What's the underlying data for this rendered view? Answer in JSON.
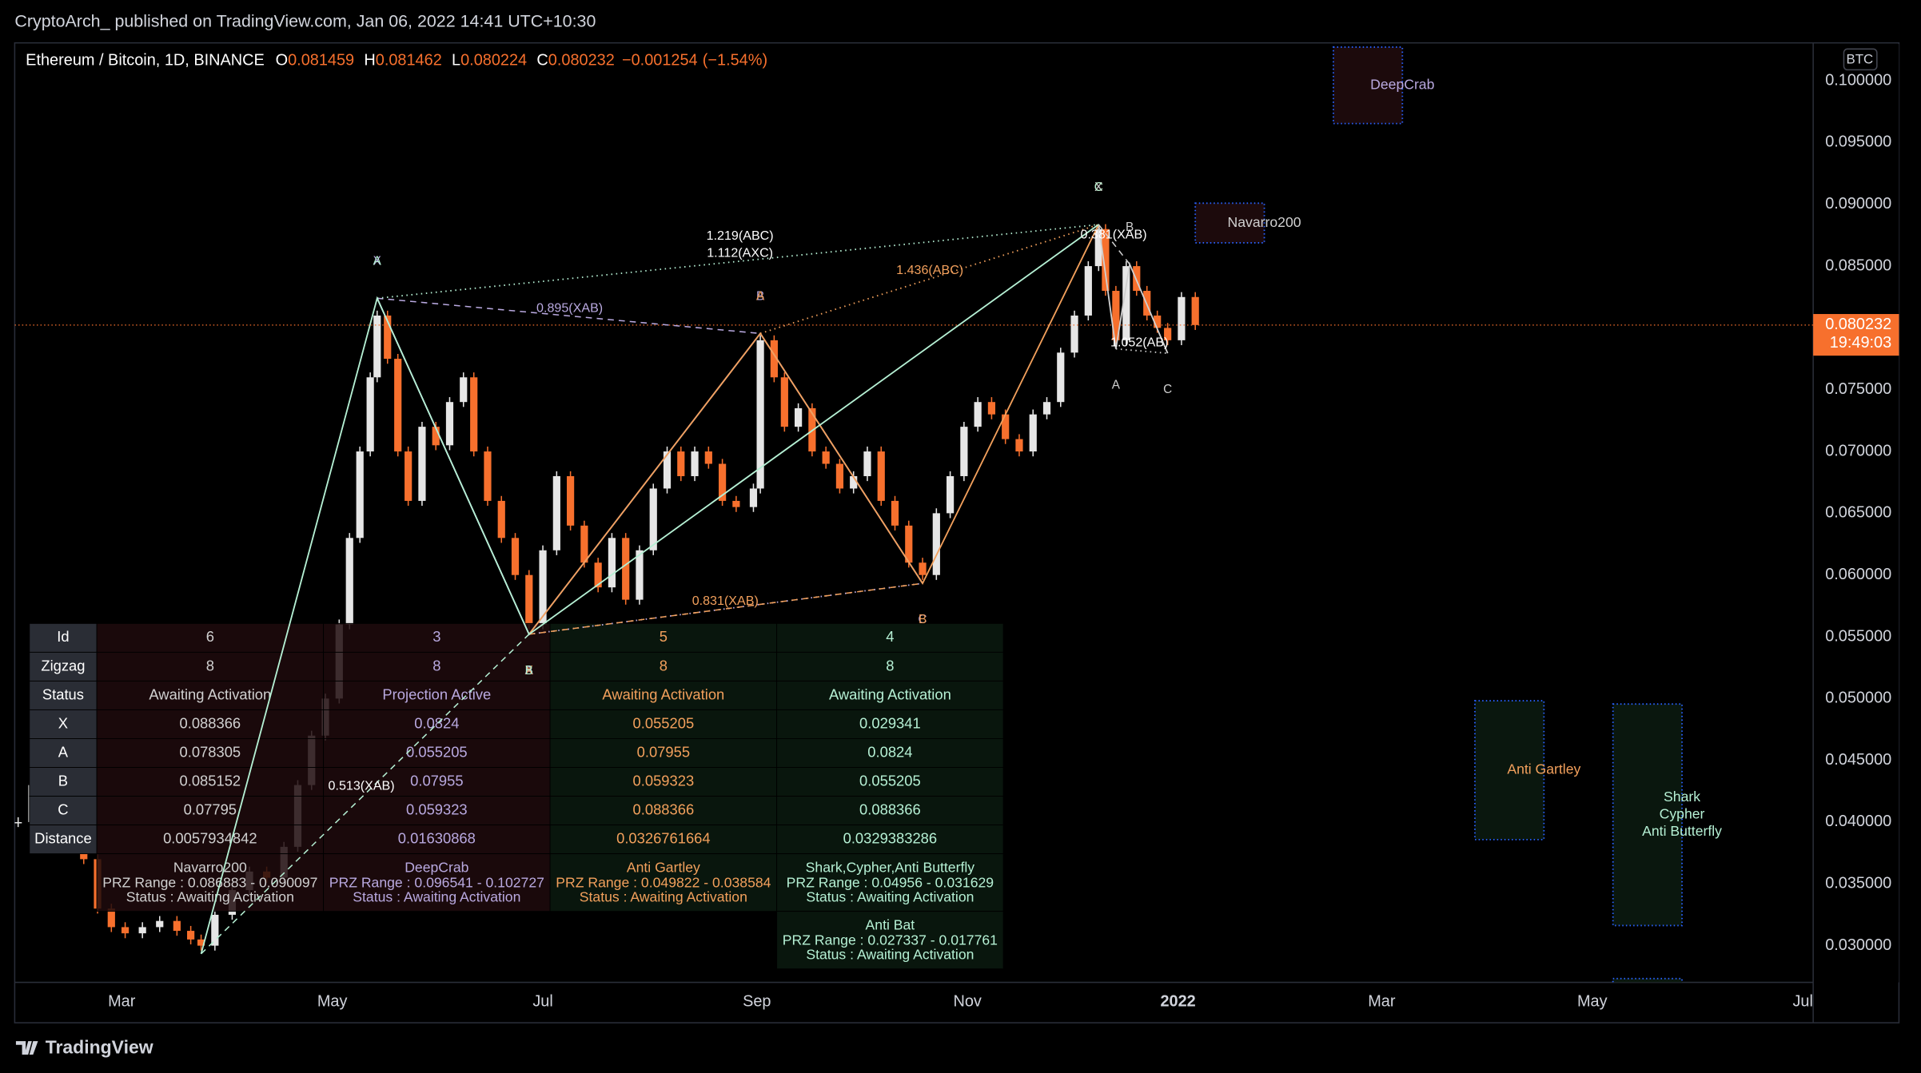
{
  "header": {
    "publisher": "CryptoArch_ published on TradingView.com, Jan 06, 2022 14:41 UTC+10:30"
  },
  "footer": {
    "logo": "TradingView"
  },
  "chart_data": {
    "type": "candlestick",
    "symbol": "Ethereum / Bitcoin, 1D, BINANCE",
    "ohlc": [
      {
        "label": "O",
        "value": 0.081459
      },
      {
        "label": "H",
        "value": 0.081462
      },
      {
        "label": "L",
        "value": 0.080224
      },
      {
        "label": "C",
        "value": 0.080232
      }
    ],
    "change": {
      "value": -0.001254,
      "label": "−0.001254"
    },
    "change_percent": {
      "value": -1.54,
      "label": "(−1.54%)"
    },
    "currency": "BTC",
    "countdown": "19:49:03",
    "up_color": "#e6e6e6",
    "down_color": "#f7702d",
    "grid": false,
    "x": [
      "2021-01-30",
      "2021-02-03",
      "2021-02-06",
      "2021-02-10",
      "2021-02-14",
      "2021-02-18",
      "2021-02-22",
      "2021-02-26",
      "2021-03-02",
      "2021-03-07",
      "2021-03-12",
      "2021-03-17",
      "2021-03-21",
      "2021-03-24",
      "2021-03-28",
      "2021-04-02",
      "2021-04-07",
      "2021-04-12",
      "2021-04-17",
      "2021-04-21",
      "2021-04-25",
      "2021-04-29",
      "2021-05-03",
      "2021-05-06",
      "2021-05-09",
      "2021-05-12",
      "2021-05-14",
      "2021-05-17",
      "2021-05-20",
      "2021-05-23",
      "2021-05-27",
      "2021-05-31",
      "2021-06-04",
      "2021-06-08",
      "2021-06-11",
      "2021-06-15",
      "2021-06-19",
      "2021-06-23",
      "2021-06-27",
      "2021-07-01",
      "2021-07-05",
      "2021-07-09",
      "2021-07-13",
      "2021-07-17",
      "2021-07-21",
      "2021-07-25",
      "2021-07-29",
      "2021-08-02",
      "2021-08-06",
      "2021-08-10",
      "2021-08-14",
      "2021-08-18",
      "2021-08-22",
      "2021-08-26",
      "2021-08-31",
      "2021-09-02",
      "2021-09-06",
      "2021-09-09",
      "2021-09-13",
      "2021-09-17",
      "2021-09-21",
      "2021-09-25",
      "2021-09-29",
      "2021-10-03",
      "2021-10-07",
      "2021-10-11",
      "2021-10-15",
      "2021-10-19",
      "2021-10-23",
      "2021-10-27",
      "2021-10-31",
      "2021-11-04",
      "2021-11-08",
      "2021-11-12",
      "2021-11-16",
      "2021-11-20",
      "2021-11-24",
      "2021-11-28",
      "2021-12-02",
      "2021-12-06",
      "2021-12-09",
      "2021-12-11",
      "2021-12-14",
      "2021-12-17",
      "2021-12-20",
      "2021-12-23",
      "2021-12-26",
      "2021-12-29",
      "2022-01-02",
      "2022-01-06"
    ],
    "values": [
      0.04,
      0.043,
      0.046,
      0.041,
      0.039,
      0.037,
      0.033,
      0.0315,
      0.031,
      0.0315,
      0.032,
      0.0312,
      0.0305,
      0.03,
      0.0325,
      0.0345,
      0.036,
      0.0355,
      0.038,
      0.043,
      0.047,
      0.05,
      0.056,
      0.063,
      0.07,
      0.076,
      0.081,
      0.0775,
      0.07,
      0.066,
      0.072,
      0.0705,
      0.074,
      0.076,
      0.07,
      0.066,
      0.063,
      0.06,
      0.056,
      0.062,
      0.068,
      0.064,
      0.061,
      0.059,
      0.063,
      0.058,
      0.062,
      0.067,
      0.07,
      0.068,
      0.07,
      0.069,
      0.066,
      0.0655,
      0.067,
      0.079,
      0.076,
      0.072,
      0.0735,
      0.07,
      0.069,
      0.067,
      0.068,
      0.07,
      0.066,
      0.064,
      0.061,
      0.06,
      0.065,
      0.068,
      0.072,
      0.074,
      0.073,
      0.071,
      0.07,
      0.073,
      0.074,
      0.078,
      0.081,
      0.085,
      0.088,
      0.083,
      0.079,
      0.085,
      0.083,
      0.081,
      0.08,
      0.079,
      0.0825,
      0.080232
    ],
    "xlim": [
      "2021-01-29",
      "2022-07-04"
    ],
    "xticks": [
      {
        "value": "2021-03-01",
        "label": "Mar"
      },
      {
        "value": "2021-05-01",
        "label": "May"
      },
      {
        "value": "2021-07-01",
        "label": "Jul"
      },
      {
        "value": "2021-09-01",
        "label": "Sep"
      },
      {
        "value": "2021-11-01",
        "label": "Nov"
      },
      {
        "value": "2022-01-01",
        "label": "2022"
      },
      {
        "value": "2022-03-01",
        "label": "Mar"
      },
      {
        "value": "2022-05-01",
        "label": "May"
      },
      {
        "value": "2022-07-01",
        "label": "Jul"
      }
    ],
    "ylim": [
      0.02703,
      0.10307
    ],
    "yticks": [
      {
        "value": 0.03,
        "label": "0.030000"
      },
      {
        "value": 0.035,
        "label": "0.035000"
      },
      {
        "value": 0.04,
        "label": "0.040000"
      },
      {
        "value": 0.045,
        "label": "0.045000"
      },
      {
        "value": 0.05,
        "label": "0.050000"
      },
      {
        "value": 0.055,
        "label": "0.055000"
      },
      {
        "value": 0.06,
        "label": "0.060000"
      },
      {
        "value": 0.065,
        "label": "0.065000"
      },
      {
        "value": 0.07,
        "label": "0.070000"
      },
      {
        "value": 0.075,
        "label": "0.075000"
      },
      {
        "value": 0.08,
        "label": "0.080000"
      },
      {
        "value": 0.085,
        "label": "0.085000"
      },
      {
        "value": 0.09,
        "label": "0.090000"
      },
      {
        "value": 0.095,
        "label": "0.095000"
      },
      {
        "value": 0.1,
        "label": "0.100000"
      }
    ],
    "annotations": [
      "1.219(ABC)",
      "1.112(AXC)",
      "0.895(XAB)",
      "1.436(ABC)",
      "0.831(XAB)",
      "0.513(XAB)",
      "0.381(XAB)",
      "1.052(AB)"
    ],
    "patterns": [
      {
        "color": "#d0d0d0",
        "x": [
          "2021-12-09",
          "2021-12-14",
          "2021-12-18",
          "2021-12-29"
        ],
        "boxes": [
          {
            "x": [
              "2022-01-06",
              "2022-01-26"
            ],
            "label": [
              "Navarro200"
            ]
          }
        ]
      },
      {
        "color": "#b9a9e0",
        "x": [
          "2021-05-14",
          "2021-06-27",
          "2021-09-02",
          "2021-10-19"
        ],
        "boxes": [
          {
            "x": [
              "2022-02-15",
              "2022-03-07"
            ],
            "label": [
              "DeepCrab"
            ]
          }
        ]
      },
      {
        "color": "#f2a05c",
        "x": [
          "2021-06-27",
          "2021-09-02",
          "2021-10-19",
          "2021-12-09"
        ],
        "boxes": [
          {
            "x": [
              "2022-03-28",
              "2022-04-17"
            ],
            "label": [
              "Anti Gartley"
            ]
          }
        ]
      },
      {
        "color": "#b5f0d4",
        "x": [
          "2021-03-24",
          "2021-05-14",
          "2021-06-27",
          "2021-12-09"
        ],
        "boxes": [
          {
            "x": [
              "2022-05-07",
              "2022-05-27"
            ],
            "label": [
              "Shark",
              "Cypher",
              "Anti Butterfly"
            ]
          },
          {
            "x": [
              "2022-05-07",
              "2022-05-27"
            ]
          }
        ]
      }
    ]
  },
  "table": {
    "row_headers": [
      "Id",
      "Zigzag",
      "Status",
      "X",
      "A",
      "B",
      "C",
      "Distance"
    ],
    "rows": [
      [
        6,
        3,
        5,
        4
      ],
      [
        8,
        8,
        8,
        8
      ],
      [
        "Awaiting Activation",
        "Projection Active",
        "Awaiting Activation",
        "Awaiting Activation"
      ],
      [
        0.088366,
        0.0824,
        0.055205,
        0.029341
      ],
      [
        0.078305,
        0.055205,
        0.07955,
        0.0824
      ],
      [
        0.085152,
        0.07955,
        0.059323,
        0.055205
      ],
      [
        0.07795,
        0.059323,
        0.088366,
        0.088366
      ],
      [
        0.0057934842,
        0.01630868,
        0.0326761664,
        0.0329383286
      ]
    ],
    "patterns": [
      [
        {
          "name": "Navarro200",
          "prz": {
            "prefix": "PRZ Range : ",
            "from": 0.086883,
            "sep": " - ",
            "to": 0.090097
          },
          "status": "Status : Awaiting Activation"
        }
      ],
      [
        {
          "name": "DeepCrab",
          "prz": {
            "prefix": "PRZ Range : ",
            "from": 0.096541,
            "sep": " - ",
            "to": 0.102727
          },
          "status": "Status : Awaiting Activation"
        }
      ],
      [
        {
          "name": "Anti Gartley",
          "prz": {
            "prefix": "PRZ Range : ",
            "from": 0.049822,
            "sep": " - ",
            "to": 0.038584
          },
          "status": "Status : Awaiting Activation"
        }
      ],
      [
        {
          "name": "Shark,Cypher,Anti Butterfly",
          "prz": {
            "prefix": "PRZ Range : ",
            "from": 0.04956,
            "sep": " - ",
            "to": 0.031629
          },
          "status": "Status : Awaiting Activation"
        },
        {
          "name": "Anti Bat",
          "prz": {
            "prefix": "PRZ Range : ",
            "from": 0.027337,
            "sep": " - ",
            "to": 0.017761
          },
          "status": "Status : Awaiting Activation"
        }
      ]
    ]
  }
}
